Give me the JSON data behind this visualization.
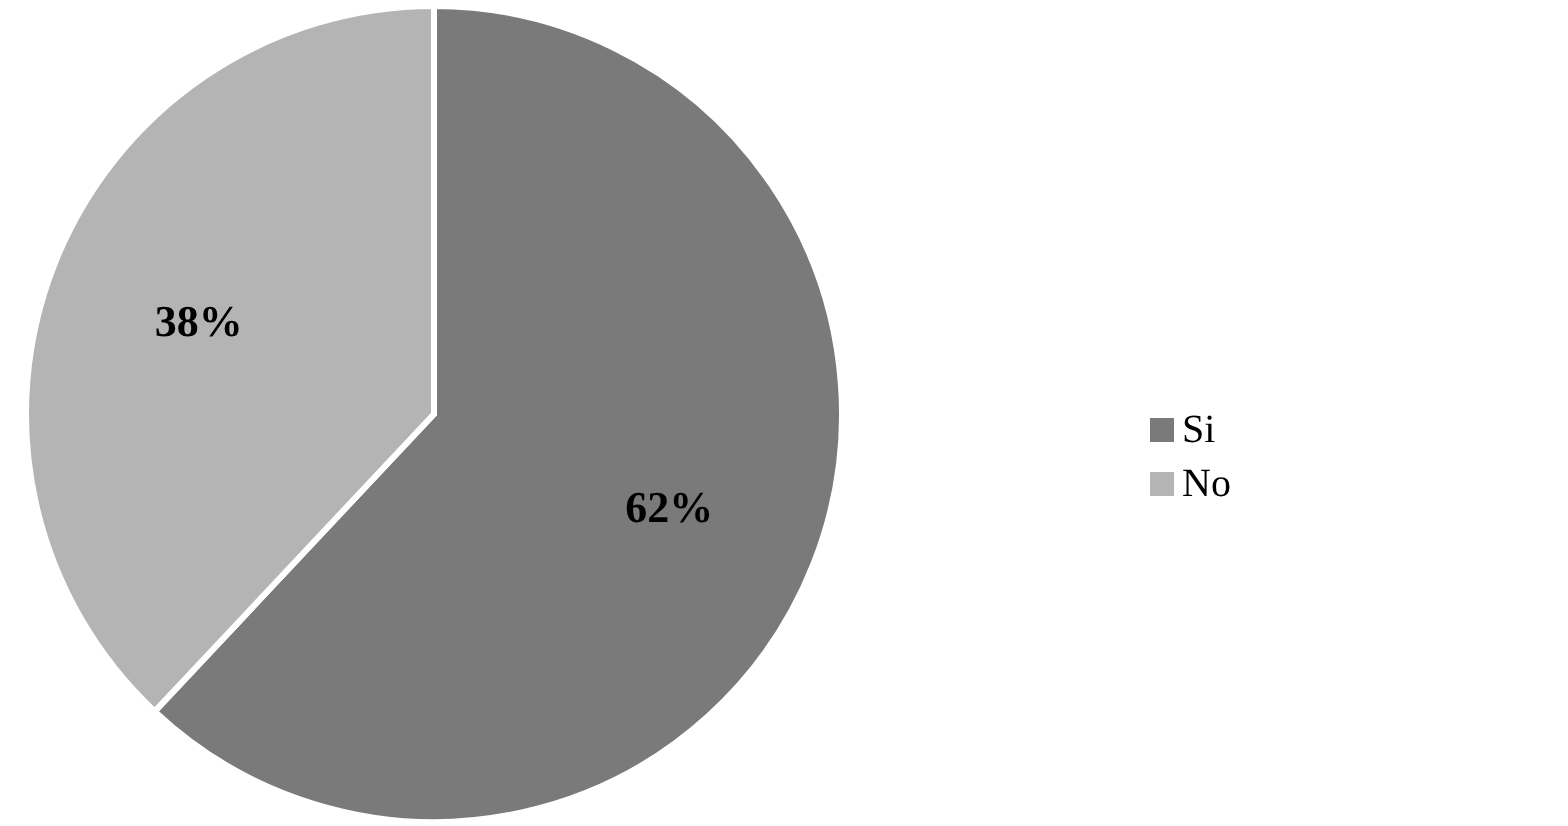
{
  "chart_data": {
    "type": "pie",
    "categories": [
      "Si",
      "No"
    ],
    "values": [
      62,
      38
    ],
    "colors": [
      "#7a7a7a",
      "#b4b4b4"
    ],
    "value_labels": [
      "62%",
      "38%"
    ],
    "legend": "right"
  }
}
